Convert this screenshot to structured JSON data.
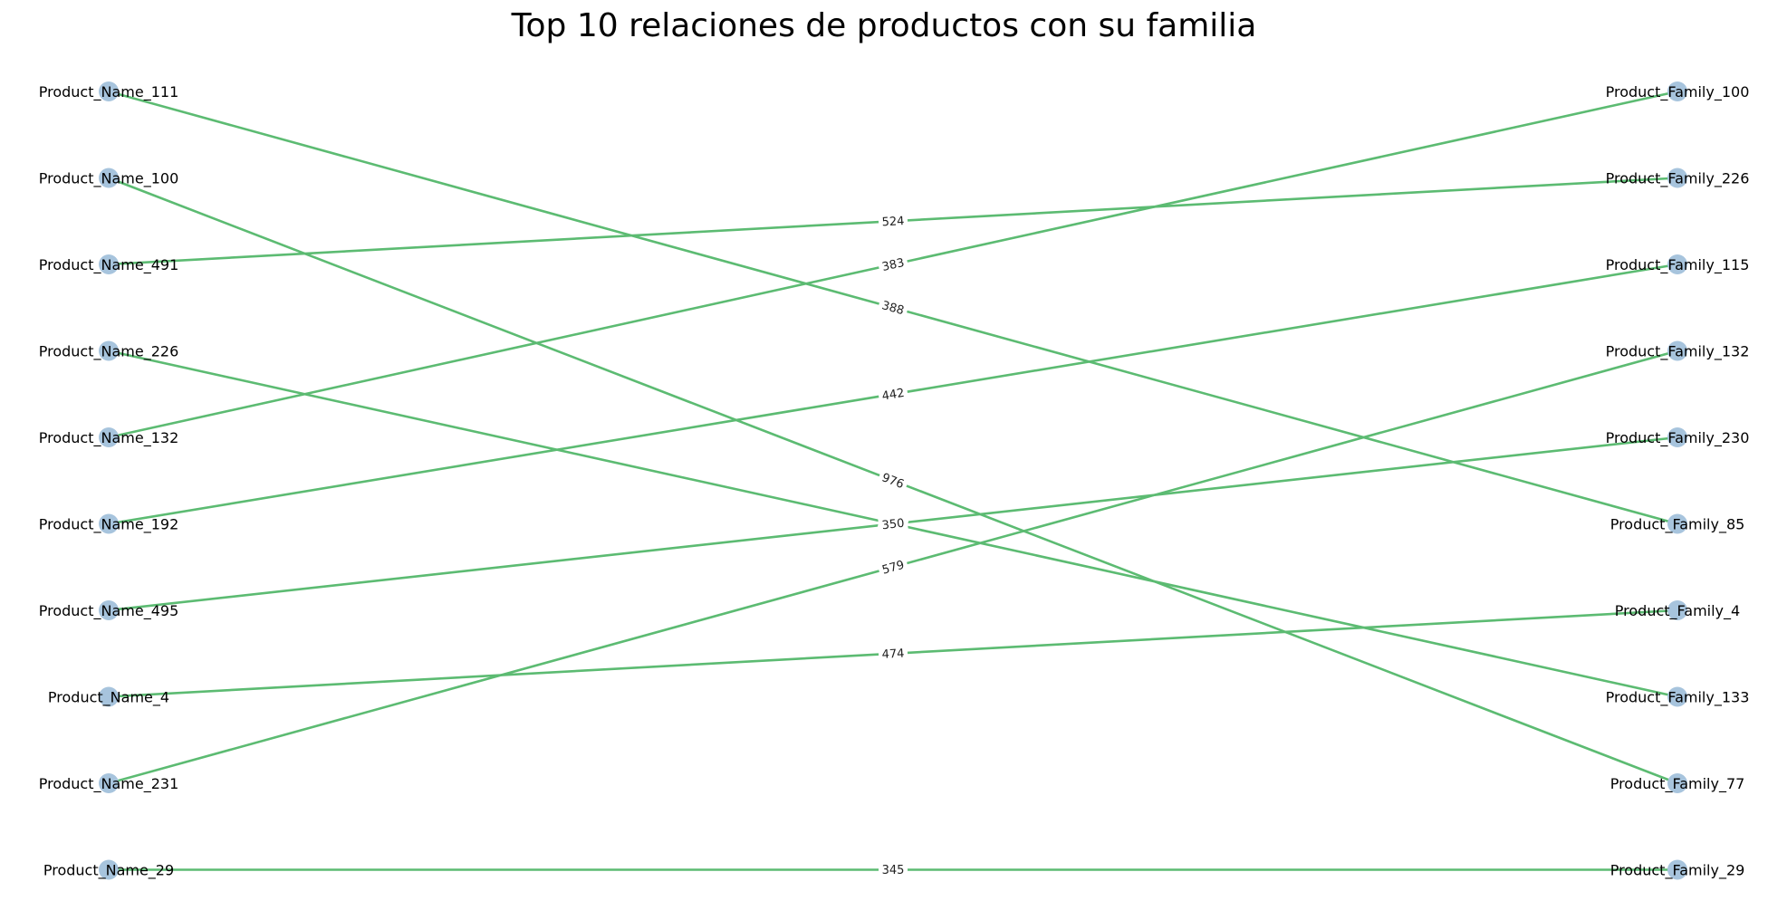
{
  "title": "Top 10 relaciones de productos con su familia",
  "colors": {
    "node": "#a7c4dd",
    "edge": "#5cbb72",
    "label_bg": "#ffffff"
  },
  "products": [
    "Product_Name_111",
    "Product_Name_100",
    "Product_Name_491",
    "Product_Name_226",
    "Product_Name_132",
    "Product_Name_192",
    "Product_Name_495",
    "Product_Name_4",
    "Product_Name_231",
    "Product_Name_29"
  ],
  "families": [
    "Product_Family_100",
    "Product_Family_226",
    "Product_Family_115",
    "Product_Family_132",
    "Product_Family_230",
    "Product_Family_85",
    "Product_Family_4",
    "Product_Family_133",
    "Product_Family_77",
    "Product_Family_29"
  ],
  "relations": [
    {
      "product": "Product_Name_111",
      "family": "Product_Family_85",
      "weight": "388"
    },
    {
      "product": "Product_Name_100",
      "family": "Product_Family_77",
      "weight": "976"
    },
    {
      "product": "Product_Name_491",
      "family": "Product_Family_226",
      "weight": "524"
    },
    {
      "product": "Product_Name_226",
      "family": "Product_Family_133",
      "weight": "350"
    },
    {
      "product": "Product_Name_132",
      "family": "Product_Family_100",
      "weight": "383"
    },
    {
      "product": "Product_Name_192",
      "family": "Product_Family_115",
      "weight": "442"
    },
    {
      "product": "Product_Name_495",
      "family": "Product_Family_230",
      "weight": "350"
    },
    {
      "product": "Product_Name_4",
      "family": "Product_Family_4",
      "weight": "474"
    },
    {
      "product": "Product_Name_231",
      "family": "Product_Family_132",
      "weight": "579"
    },
    {
      "product": "Product_Name_29",
      "family": "Product_Family_29",
      "weight": "345"
    }
  ]
}
